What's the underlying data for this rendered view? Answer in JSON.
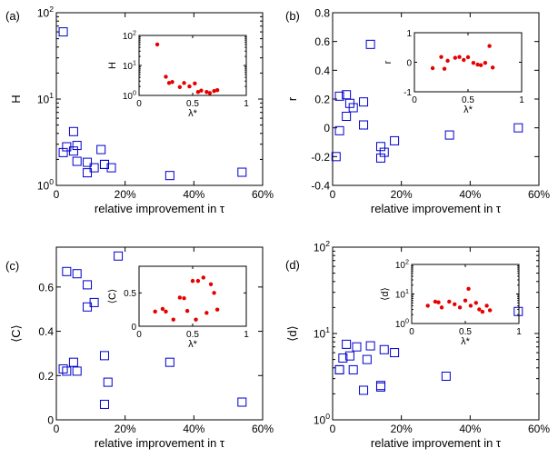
{
  "chart_data": [
    {
      "type": "scatter",
      "panel_label": "(a)",
      "xlabel": "relative improvement in τ",
      "ylabel": "H",
      "xlim": [
        0,
        0.6
      ],
      "ylim": [
        1,
        100
      ],
      "ylog": true,
      "x_ticks": [
        0,
        0.2,
        0.4,
        0.6
      ],
      "x_tick_labels": [
        "0",
        "20%",
        "40%",
        "60%"
      ],
      "y_ticks": [
        1,
        10,
        100
      ],
      "y_tick_labels": [
        "10",
        "10",
        "10"
      ],
      "y_tick_exps": [
        "0",
        "1",
        "2"
      ],
      "points": [
        {
          "x": 0.02,
          "y": 60
        },
        {
          "x": 0.02,
          "y": 2.4
        },
        {
          "x": 0.03,
          "y": 2.8
        },
        {
          "x": 0.05,
          "y": 4.2
        },
        {
          "x": 0.05,
          "y": 2.5
        },
        {
          "x": 0.06,
          "y": 2.9
        },
        {
          "x": 0.06,
          "y": 1.9
        },
        {
          "x": 0.09,
          "y": 1.85
        },
        {
          "x": 0.09,
          "y": 1.4
        },
        {
          "x": 0.11,
          "y": 1.6
        },
        {
          "x": 0.13,
          "y": 2.6
        },
        {
          "x": 0.14,
          "y": 1.75
        },
        {
          "x": 0.14,
          "y": 1.75
        },
        {
          "x": 0.16,
          "y": 1.6
        },
        {
          "x": 0.33,
          "y": 1.3
        },
        {
          "x": 0.54,
          "y": 1.42
        }
      ],
      "inset": {
        "xlabel": "λ*",
        "ylabel": "H",
        "xlim": [
          0,
          1
        ],
        "ylim": [
          1,
          100
        ],
        "ylog": true,
        "x_ticks": [
          0,
          0.5,
          1
        ],
        "x_tick_labels": [
          "0",
          "0.5",
          "1"
        ],
        "y_ticks": [
          1,
          10,
          100
        ],
        "y_tick_labels": [
          "10",
          "10",
          "10"
        ],
        "y_tick_exps": [
          "0",
          "1",
          "2"
        ],
        "points": [
          {
            "x": 0.17,
            "y": 50
          },
          {
            "x": 0.25,
            "y": 4.2
          },
          {
            "x": 0.28,
            "y": 2.6
          },
          {
            "x": 0.31,
            "y": 2.8
          },
          {
            "x": 0.38,
            "y": 1.9
          },
          {
            "x": 0.42,
            "y": 2.6
          },
          {
            "x": 0.47,
            "y": 2.0
          },
          {
            "x": 0.52,
            "y": 2.5
          },
          {
            "x": 0.55,
            "y": 1.3
          },
          {
            "x": 0.58,
            "y": 1.45
          },
          {
            "x": 0.63,
            "y": 1.3
          },
          {
            "x": 0.66,
            "y": 1.2
          },
          {
            "x": 0.7,
            "y": 1.4
          },
          {
            "x": 0.73,
            "y": 1.5
          }
        ]
      }
    },
    {
      "type": "scatter",
      "panel_label": "(b)",
      "xlabel": "relative improvement in τ",
      "ylabel": "r",
      "xlim": [
        0,
        0.6
      ],
      "ylim": [
        -0.4,
        0.8
      ],
      "ylog": false,
      "x_ticks": [
        0,
        0.2,
        0.4,
        0.6
      ],
      "x_tick_labels": [
        "0",
        "20%",
        "40%",
        "60%"
      ],
      "y_ticks": [
        -0.4,
        -0.2,
        0,
        0.2,
        0.4,
        0.6,
        0.8
      ],
      "y_tick_labels": [
        "-0.4",
        "-0.2",
        "0",
        "0.2",
        "0.4",
        "0.6",
        "0.8"
      ],
      "points": [
        {
          "x": 0.01,
          "y": -0.2
        },
        {
          "x": 0.02,
          "y": -0.02
        },
        {
          "x": 0.02,
          "y": 0.22
        },
        {
          "x": 0.04,
          "y": 0.23
        },
        {
          "x": 0.04,
          "y": 0.08
        },
        {
          "x": 0.05,
          "y": 0.17
        },
        {
          "x": 0.06,
          "y": 0.14
        },
        {
          "x": 0.09,
          "y": 0.18
        },
        {
          "x": 0.09,
          "y": 0.02
        },
        {
          "x": 0.11,
          "y": 0.58
        },
        {
          "x": 0.14,
          "y": -0.21
        },
        {
          "x": 0.14,
          "y": -0.13
        },
        {
          "x": 0.15,
          "y": -0.17
        },
        {
          "x": 0.18,
          "y": -0.09
        },
        {
          "x": 0.34,
          "y": -0.05
        },
        {
          "x": 0.54,
          "y": 0.0
        }
      ],
      "inset": {
        "xlabel": "λ*",
        "ylabel": "r",
        "xlim": [
          0,
          1
        ],
        "ylim": [
          -1,
          1
        ],
        "ylog": false,
        "x_ticks": [
          0,
          0.5,
          1
        ],
        "x_tick_labels": [
          "0",
          "0.5",
          "1"
        ],
        "y_ticks": [
          -1,
          0,
          1
        ],
        "y_tick_labels": [
          "-1",
          "0",
          "1"
        ],
        "points": [
          {
            "x": 0.17,
            "y": -0.2
          },
          {
            "x": 0.25,
            "y": 0.18
          },
          {
            "x": 0.28,
            "y": -0.22
          },
          {
            "x": 0.31,
            "y": 0.05
          },
          {
            "x": 0.38,
            "y": 0.15
          },
          {
            "x": 0.42,
            "y": 0.18
          },
          {
            "x": 0.46,
            "y": 0.08
          },
          {
            "x": 0.5,
            "y": 0.17
          },
          {
            "x": 0.55,
            "y": -0.02
          },
          {
            "x": 0.59,
            "y": -0.08
          },
          {
            "x": 0.62,
            "y": -0.1
          },
          {
            "x": 0.66,
            "y": -0.02
          },
          {
            "x": 0.7,
            "y": 0.55
          },
          {
            "x": 0.73,
            "y": -0.18
          }
        ]
      }
    },
    {
      "type": "scatter",
      "panel_label": "(c)",
      "xlabel": "relative improvement in τ",
      "ylabel": "⟨C⟩",
      "xlim": [
        0,
        0.6
      ],
      "ylim": [
        0,
        0.78
      ],
      "ylog": false,
      "x_ticks": [
        0,
        0.2,
        0.4,
        0.6
      ],
      "x_tick_labels": [
        "0",
        "20%",
        "40%",
        "60%"
      ],
      "y_ticks": [
        0,
        0.2,
        0.4,
        0.6
      ],
      "y_tick_labels": [
        "0",
        "0.2",
        "0.4",
        "0.6"
      ],
      "points": [
        {
          "x": 0.02,
          "y": 0.23
        },
        {
          "x": 0.03,
          "y": 0.22
        },
        {
          "x": 0.03,
          "y": 0.67
        },
        {
          "x": 0.05,
          "y": 0.26
        },
        {
          "x": 0.06,
          "y": 0.22
        },
        {
          "x": 0.06,
          "y": 0.66
        },
        {
          "x": 0.09,
          "y": 0.61
        },
        {
          "x": 0.09,
          "y": 0.51
        },
        {
          "x": 0.11,
          "y": 0.53
        },
        {
          "x": 0.14,
          "y": 0.07
        },
        {
          "x": 0.14,
          "y": 0.29
        },
        {
          "x": 0.15,
          "y": 0.17
        },
        {
          "x": 0.18,
          "y": 0.74
        },
        {
          "x": 0.33,
          "y": 0.26
        },
        {
          "x": 0.54,
          "y": 0.08
        }
      ],
      "inset": {
        "xlabel": "λ*",
        "ylabel": "⟨C⟩",
        "xlim": [
          0,
          1
        ],
        "ylim": [
          0,
          0.9
        ],
        "ylog": false,
        "x_ticks": [
          0,
          0.5,
          1
        ],
        "x_tick_labels": [
          "0",
          "0.5",
          "1"
        ],
        "y_ticks": [
          0,
          0.5
        ],
        "y_tick_labels": [
          "0",
          "0.5"
        ],
        "points": [
          {
            "x": 0.15,
            "y": 0.22
          },
          {
            "x": 0.22,
            "y": 0.26
          },
          {
            "x": 0.25,
            "y": 0.22
          },
          {
            "x": 0.32,
            "y": 0.1
          },
          {
            "x": 0.38,
            "y": 0.43
          },
          {
            "x": 0.42,
            "y": 0.42
          },
          {
            "x": 0.45,
            "y": 0.23
          },
          {
            "x": 0.5,
            "y": 0.68
          },
          {
            "x": 0.53,
            "y": 0.1
          },
          {
            "x": 0.55,
            "y": 0.68
          },
          {
            "x": 0.6,
            "y": 0.73
          },
          {
            "x": 0.63,
            "y": 0.2
          },
          {
            "x": 0.67,
            "y": 0.63
          },
          {
            "x": 0.7,
            "y": 0.5
          },
          {
            "x": 0.73,
            "y": 0.25
          }
        ]
      }
    },
    {
      "type": "scatter",
      "panel_label": "(d)",
      "xlabel": "relative improvement in τ",
      "ylabel": "⟨d⟩",
      "xlim": [
        0,
        0.6
      ],
      "ylim": [
        1,
        100
      ],
      "ylog": true,
      "x_ticks": [
        0,
        0.2,
        0.4,
        0.6
      ],
      "x_tick_labels": [
        "0",
        "20%",
        "40%",
        "60%"
      ],
      "y_ticks": [
        1,
        10,
        100
      ],
      "y_tick_labels": [
        "10",
        "10",
        "10"
      ],
      "y_tick_exps": [
        "0",
        "1",
        "2"
      ],
      "points": [
        {
          "x": 0.02,
          "y": 3.8
        },
        {
          "x": 0.02,
          "y": 3.8
        },
        {
          "x": 0.03,
          "y": 5.2
        },
        {
          "x": 0.04,
          "y": 7.5
        },
        {
          "x": 0.05,
          "y": 5.5
        },
        {
          "x": 0.06,
          "y": 3.8
        },
        {
          "x": 0.07,
          "y": 7.0
        },
        {
          "x": 0.09,
          "y": 2.2
        },
        {
          "x": 0.1,
          "y": 5.0
        },
        {
          "x": 0.11,
          "y": 7.2
        },
        {
          "x": 0.14,
          "y": 2.5
        },
        {
          "x": 0.14,
          "y": 2.4
        },
        {
          "x": 0.15,
          "y": 6.5
        },
        {
          "x": 0.18,
          "y": 6.0
        },
        {
          "x": 0.33,
          "y": 3.2
        },
        {
          "x": 0.54,
          "y": 18
        }
      ],
      "inset": {
        "xlabel": "λ*",
        "ylabel": "⟨d⟩",
        "xlim": [
          0,
          1
        ],
        "ylim": [
          1,
          100
        ],
        "ylog": true,
        "x_ticks": [
          0,
          0.5,
          1
        ],
        "x_tick_labels": [
          "0",
          "0.5",
          "1"
        ],
        "y_ticks": [
          1,
          10,
          100
        ],
        "y_tick_labels": [
          "10",
          "10",
          "10"
        ],
        "y_tick_exps": [
          "0",
          "1",
          "2"
        ],
        "points": [
          {
            "x": 0.15,
            "y": 4.0
          },
          {
            "x": 0.22,
            "y": 5.5
          },
          {
            "x": 0.25,
            "y": 5.2
          },
          {
            "x": 0.28,
            "y": 3.5
          },
          {
            "x": 0.35,
            "y": 5.5
          },
          {
            "x": 0.4,
            "y": 4.5
          },
          {
            "x": 0.45,
            "y": 3.5
          },
          {
            "x": 0.5,
            "y": 6.0
          },
          {
            "x": 0.53,
            "y": 15
          },
          {
            "x": 0.55,
            "y": 4.0
          },
          {
            "x": 0.6,
            "y": 5.0
          },
          {
            "x": 0.63,
            "y": 3.0
          },
          {
            "x": 0.66,
            "y": 2.5
          },
          {
            "x": 0.7,
            "y": 4.0
          },
          {
            "x": 0.73,
            "y": 2.8
          }
        ]
      }
    }
  ]
}
